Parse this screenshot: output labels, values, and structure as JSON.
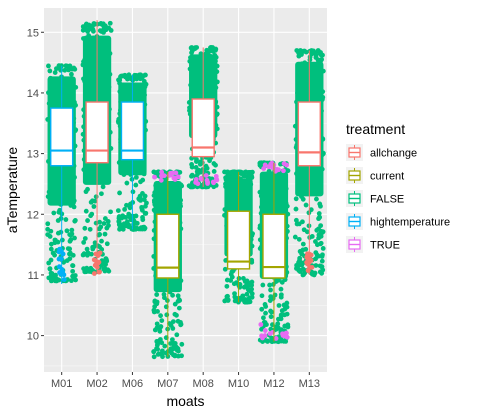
{
  "chart_data": {
    "type": "boxplot",
    "xlabel": "moats",
    "ylabel": "aTemperature",
    "categories": [
      "M01",
      "M02",
      "M06",
      "M07",
      "M08",
      "M10",
      "M12",
      "M13"
    ],
    "ylim": [
      9.4,
      15.4
    ],
    "yticks": [
      10,
      11,
      12,
      13,
      14,
      15
    ],
    "grid": true,
    "legend": {
      "title": "treatment",
      "placement": "right",
      "entries": [
        {
          "name": "allchange",
          "color": "#F8766D"
        },
        {
          "name": "current",
          "color": "#A3A500"
        },
        {
          "name": "FALSE",
          "color": "#00BF7D"
        },
        {
          "name": "hightemperature",
          "color": "#00B0F6"
        },
        {
          "name": "TRUE",
          "color": "#E76BF3"
        }
      ]
    },
    "boxes": [
      {
        "category": "M01",
        "treatment": "hightemperature",
        "min": 10.85,
        "q1": 12.8,
        "median": 13.05,
        "q3": 13.75,
        "max": 14.45
      },
      {
        "category": "M02",
        "treatment": "allchange",
        "min": 11.05,
        "q1": 12.85,
        "median": 13.05,
        "q3": 13.85,
        "max": 15.2
      },
      {
        "category": "M06",
        "treatment": "hightemperature",
        "min": 11.75,
        "q1": 12.9,
        "median": 13.05,
        "q3": 13.85,
        "max": 14.3
      },
      {
        "category": "M07",
        "treatment": "current",
        "min": 9.65,
        "q1": 10.95,
        "median": 11.12,
        "q3": 12.0,
        "max": 12.7
      },
      {
        "category": "M08",
        "treatment": "allchange",
        "min": 12.45,
        "q1": 12.95,
        "median": 13.1,
        "q3": 13.9,
        "max": 14.75
      },
      {
        "category": "M10",
        "treatment": "current",
        "min": 10.55,
        "q1": 11.1,
        "median": 11.22,
        "q3": 12.05,
        "max": 12.7
      },
      {
        "category": "M12",
        "treatment": "current",
        "min": 9.9,
        "q1": 10.95,
        "median": 11.13,
        "q3": 12.0,
        "max": 12.85
      },
      {
        "category": "M13",
        "treatment": "allchange",
        "min": 11.0,
        "q1": 12.8,
        "median": 13.02,
        "q3": 13.85,
        "max": 14.7
      }
    ],
    "points": [
      {
        "category": "M01",
        "treatment": "FALSE",
        "range": [
          10.9,
          14.45
        ]
      },
      {
        "category": "M02",
        "treatment": "FALSE",
        "range": [
          11.05,
          15.15
        ]
      },
      {
        "category": "M06",
        "treatment": "FALSE",
        "range": [
          11.75,
          14.3
        ]
      },
      {
        "category": "M07",
        "treatment": "FALSE",
        "range": [
          9.65,
          12.7
        ]
      },
      {
        "category": "M08",
        "treatment": "FALSE",
        "range": [
          12.45,
          14.75
        ]
      },
      {
        "category": "M10",
        "treatment": "FALSE",
        "range": [
          10.55,
          12.7
        ]
      },
      {
        "category": "M12",
        "treatment": "FALSE",
        "range": [
          9.9,
          12.85
        ]
      },
      {
        "category": "M13",
        "treatment": "FALSE",
        "range": [
          11.0,
          14.7
        ]
      }
    ],
    "highlight_points": [
      {
        "category": "M01",
        "treatment": "hightemperature",
        "range": [
          10.85,
          11.45
        ]
      },
      {
        "category": "M02",
        "treatment": "allchange",
        "range": [
          11.0,
          11.4
        ]
      },
      {
        "category": "M13",
        "treatment": "allchange",
        "range": [
          11.05,
          11.35
        ]
      },
      {
        "category": "M07",
        "treatment": "TRUE",
        "range": [
          12.5,
          12.7
        ]
      },
      {
        "category": "M08",
        "treatment": "TRUE",
        "range": [
          12.5,
          12.65
        ]
      },
      {
        "category": "M12",
        "treatment": "TRUE",
        "range": [
          12.7,
          12.85
        ]
      },
      {
        "category": "M12",
        "treatment": "TRUE",
        "range": [
          9.95,
          10.2
        ]
      }
    ]
  }
}
